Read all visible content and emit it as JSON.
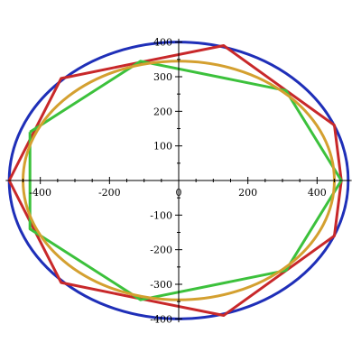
{
  "chart_data": {
    "type": "line",
    "xlim": [
      -500,
      500
    ],
    "ylim": [
      -410,
      410
    ],
    "x_ticks": [
      -400,
      -200,
      0,
      200,
      400
    ],
    "y_ticks": [
      -400,
      -300,
      -200,
      -100,
      100,
      200,
      300,
      400
    ],
    "grid": false,
    "series": [
      {
        "color": "#1f2fb8",
        "shape": "ellipse",
        "center": [
          0,
          0
        ],
        "semi_axes": [
          490,
          400
        ]
      },
      {
        "color": "#c8282a",
        "points": [
          [
            -490,
            0
          ],
          [
            -340,
            295
          ],
          [
            -120,
            340
          ],
          [
            130,
            390
          ],
          [
            450,
            160
          ],
          [
            470,
            0
          ],
          [
            450,
            -160
          ],
          [
            130,
            -390
          ],
          [
            -120,
            -340
          ],
          [
            -340,
            -295
          ],
          [
            -490,
            0
          ]
        ]
      },
      {
        "color": "#3cc13c",
        "points": [
          [
            -430,
            140
          ],
          [
            -110,
            345
          ],
          [
            310,
            260
          ],
          [
            470,
            0
          ],
          [
            310,
            -260
          ],
          [
            -110,
            -345
          ],
          [
            -430,
            -140
          ],
          [
            -430,
            140
          ]
        ]
      },
      {
        "color": "#d4a030",
        "shape": "ellipse",
        "center": [
          0,
          0
        ],
        "semi_axes": [
          450,
          345
        ]
      }
    ]
  }
}
